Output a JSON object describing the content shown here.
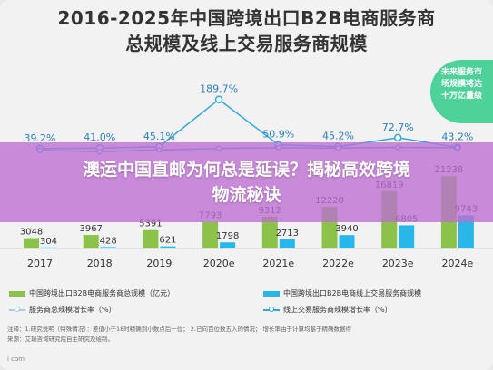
{
  "title_lines": [
    "2016-2025年中国跨境出口B2B电商服务商",
    "总规模及线上交易服务商规模"
  ],
  "overlay_lines": [
    "澳运中国直邮为何总是延误？揭秘高效跨境",
    "物流秘诀"
  ],
  "callout_lines": [
    "未来服务市",
    "场规模将达",
    "十万亿量级"
  ],
  "footnote_lines": [
    "注释：1.研究说明（特殊情况）：差值小于18时精确到小数点后一位； 2.已向百位数五入的情况； 增长率由于计算均基于精确数据得",
    "来源：艾瑞咨询研究院自主研究及绘制。"
  ],
  "footer_brand": "i com",
  "colors": {
    "total_bar": "#8bc34a",
    "online_bar": "#29b6e8",
    "total_growth_line": "#a8cbe8",
    "online_growth_line": "#2ea8e0",
    "background": "#f2f2f2",
    "overlay": "#be6ed2",
    "callout": "#4fd19a"
  },
  "chart_data": {
    "type": "bar",
    "title": "2016-2025年中国跨境出口B2B电商服务商总规模及线上交易服务商规模",
    "categories": [
      "2017",
      "2018",
      "2019",
      "2020e",
      "2021e",
      "2022e",
      "2023e",
      "2024e"
    ],
    "series": [
      {
        "name": "中国跨境出口B2B电商服务商总规模（亿元）",
        "kind": "bar",
        "values": [
          3048,
          3967,
          5391,
          7793,
          9312,
          12220,
          16819,
          21238
        ],
        "labels": [
          "3048",
          "3967",
          "5391",
          "7793",
          "9312",
          "12220",
          "16819",
          "21238"
        ]
      },
      {
        "name": "中国跨境出口B2B电商线上交易服务商规模",
        "kind": "bar",
        "values": [
          304,
          428,
          621,
          1798,
          2713,
          3940,
          6805,
          9743
        ],
        "labels": [
          "304",
          "428",
          "621",
          "1798",
          "2713",
          "3940",
          "6805",
          "9743"
        ]
      },
      {
        "name": "服务商总规模增长率（%）",
        "kind": "line",
        "values": [
          39.2,
          41.0,
          45.1,
          189.7,
          50.9,
          45.2,
          72.7,
          43.2
        ],
        "labels": [
          "39.2%",
          "41.0%",
          "45.1%",
          "189.7%",
          "50.9%",
          "45.2%",
          "72.7%",
          "43.2%"
        ]
      },
      {
        "name": "线上交易服务商规模增长率（%）",
        "kind": "line",
        "values": [
          34.0,
          30.0,
          35.0,
          40.0,
          42.0,
          41.0,
          43.0,
          42.0
        ],
        "labels": []
      }
    ],
    "ylim_bars": [
      0,
      25000
    ],
    "ylim_growth": [
      0,
      200
    ],
    "legend_position": "bottom",
    "grid": false
  }
}
